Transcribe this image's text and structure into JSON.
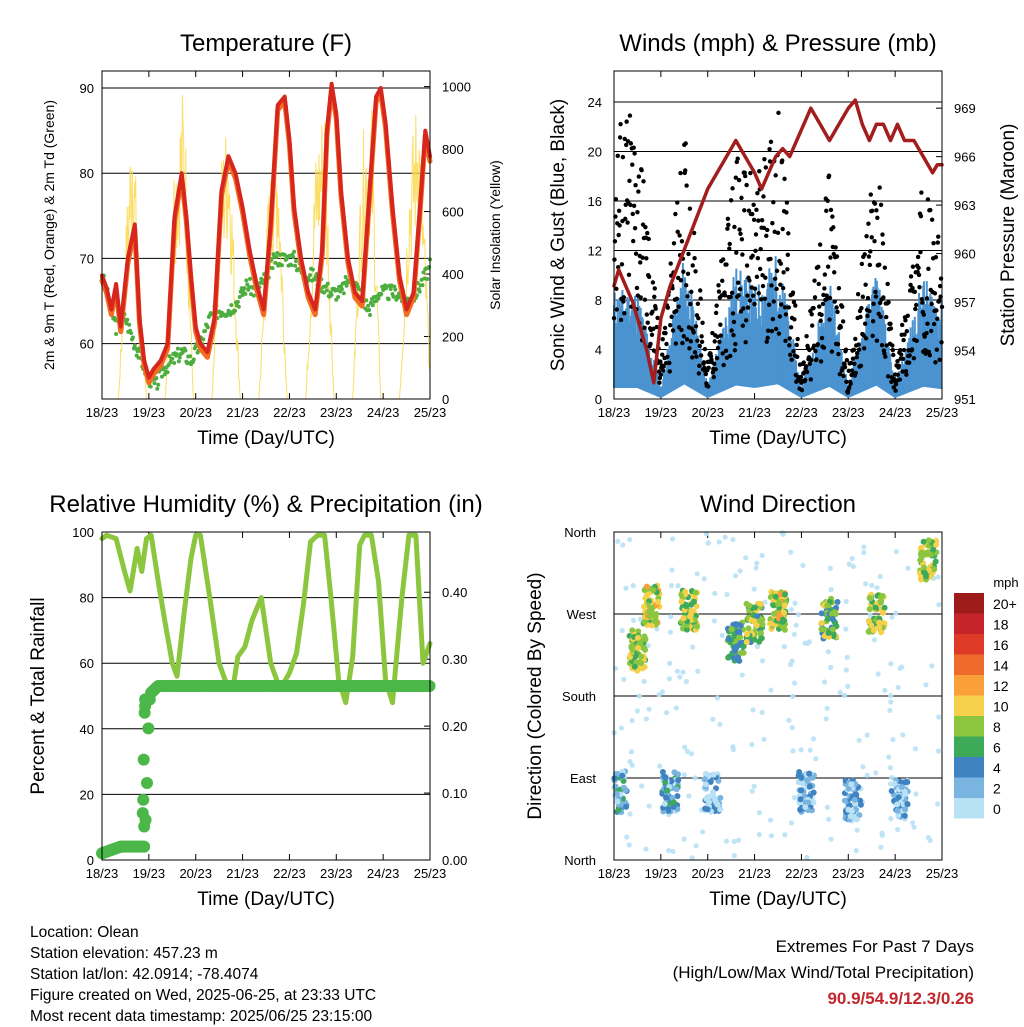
{
  "colors": {
    "temp2m": "#d7261e",
    "temp9m": "#f26d21",
    "dewpoint": "#4dad3e",
    "solar": "#fbd84b",
    "wind": "#4a93d0",
    "gust": "#000000",
    "pressure": "#a41d1d",
    "rh": "#8cc63f",
    "precip": "#4bb748",
    "extremes": "#c1272d"
  },
  "footer": {
    "location": "Location: Olean",
    "elevation": "Station elevation: 457.23 m",
    "latlon": "Station lat/lon: 42.0914; -78.4074",
    "created": "Figure created on Wed, 2025-06-25, at 23:33 UTC",
    "recent": "Most recent data timestamp: 2025/06/25 23:15:00",
    "extremes_title": "Extremes For Past 7 Days",
    "extremes_sub": "(High/Low/Max Wind/Total Precipitation)",
    "extremes_values": "90.9/54.9/12.3/0.26"
  },
  "chart_data": [
    {
      "id": "temperature",
      "type": "line",
      "title": "Temperature (F)",
      "xlabel": "Time (Day/UTC)",
      "ylabel": "2m & 9m T (Red, Orange) & 2m Td (Green)",
      "y2label": "Solar Insolation (Yellow)",
      "xticks": [
        "18/23",
        "19/23",
        "20/23",
        "21/23",
        "22/23",
        "23/23",
        "24/23",
        "25/23"
      ],
      "xlim": [
        0,
        7
      ],
      "ylim": [
        53.5,
        92
      ],
      "yticks": [
        60,
        70,
        80,
        90
      ],
      "y2lim": [
        0,
        1050
      ],
      "y2ticks": [
        0,
        200,
        400,
        600,
        800,
        1000
      ],
      "series": [
        {
          "name": "2m T",
          "color_key": "temp2m",
          "x": [
            0,
            0.1,
            0.2,
            0.3,
            0.4,
            0.55,
            0.7,
            0.8,
            0.9,
            1.0,
            1.1,
            1.25,
            1.4,
            1.55,
            1.7,
            1.8,
            1.9,
            2.0,
            2.1,
            2.25,
            2.4,
            2.55,
            2.7,
            2.85,
            3.0,
            3.15,
            3.3,
            3.45,
            3.6,
            3.75,
            3.9,
            4.0,
            4.1,
            4.25,
            4.4,
            4.55,
            4.7,
            4.8,
            4.9,
            5.0,
            5.1,
            5.25,
            5.4,
            5.55,
            5.7,
            5.85,
            5.95,
            6.05,
            6.2,
            6.35,
            6.5,
            6.65,
            6.8,
            6.9,
            7.0
          ],
          "values": [
            68,
            66.5,
            64,
            67,
            62,
            70,
            74,
            63,
            58,
            56,
            57,
            58,
            60,
            75,
            80,
            75,
            68,
            62,
            60,
            59,
            63,
            78,
            82,
            80,
            76,
            71,
            67,
            64,
            74,
            88,
            89,
            84,
            76,
            70,
            66,
            64,
            71,
            85,
            90.5,
            87,
            78,
            70,
            66,
            65,
            77,
            89,
            90,
            86,
            76,
            68,
            64,
            66,
            77,
            85,
            82
          ]
        },
        {
          "name": "Td",
          "color_key": "dewpoint",
          "x": [
            0,
            0.15,
            0.3,
            0.5,
            0.7,
            0.85,
            1.0,
            1.15,
            1.3,
            1.5,
            1.7,
            1.9,
            2.1,
            2.3,
            2.5,
            2.7,
            2.9,
            3.1,
            3.3,
            3.5,
            3.7,
            3.9,
            4.1,
            4.3,
            4.5,
            4.7,
            4.9,
            5.1,
            5.3,
            5.5,
            5.7,
            5.9,
            6.1,
            6.3,
            6.5,
            6.7,
            6.9,
            7.0
          ],
          "values": [
            68,
            65,
            62,
            63,
            60,
            58,
            56,
            55,
            57,
            58,
            59,
            58,
            60,
            63,
            64,
            64,
            65,
            67,
            66,
            68,
            70,
            70,
            70,
            68,
            68,
            67,
            66,
            66,
            68,
            66,
            64,
            66,
            66,
            66,
            65,
            66,
            68,
            69
          ]
        },
        {
          "name": "Solar",
          "color_key": "solar",
          "axis": "y2",
          "x": [
            0,
            0.35,
            0.5,
            0.65,
            0.8,
            0.95,
            1.35,
            1.5,
            1.75,
            1.95,
            2.35,
            2.5,
            2.7,
            2.95,
            3.35,
            3.55,
            3.75,
            3.95,
            4.35,
            4.55,
            4.75,
            4.95,
            5.35,
            5.55,
            5.75,
            5.95,
            6.35,
            6.55,
            6.75,
            6.95,
            7.0
          ],
          "values": [
            0,
            0,
            500,
            950,
            400,
            0,
            0,
            700,
            1000,
            0,
            0,
            700,
            900,
            0,
            0,
            650,
            850,
            0,
            0,
            750,
            950,
            0,
            0,
            800,
            950,
            0,
            0,
            700,
            980,
            300,
            100
          ]
        }
      ]
    },
    {
      "id": "winds",
      "type": "scatter",
      "title": "Winds (mph) & Pressure (mb)",
      "xlabel": "Time (Day/UTC)",
      "ylabel": "Sonic Wind & Gust (Blue, Black)",
      "y2label": "Station Pressure (Maroon)",
      "xticks": [
        "18/23",
        "19/23",
        "20/23",
        "21/23",
        "22/23",
        "23/23",
        "24/23",
        "25/23"
      ],
      "xlim": [
        0,
        7
      ],
      "ylim": [
        0,
        26.5
      ],
      "yticks": [
        0,
        4,
        8,
        12,
        16,
        20,
        24
      ],
      "y2lim": [
        951,
        971.3
      ],
      "y2ticks": [
        951,
        954,
        957,
        960,
        963,
        966,
        969
      ],
      "series": [
        {
          "name": "Pressure",
          "color_key": "pressure",
          "axis": "y2",
          "type": "line",
          "x": [
            0,
            0.1,
            0.25,
            0.4,
            0.55,
            0.7,
            0.85,
            1.0,
            1.2,
            1.4,
            1.6,
            1.8,
            2.0,
            2.2,
            2.4,
            2.6,
            2.8,
            3.0,
            3.15,
            3.3,
            3.45,
            3.6,
            3.75,
            3.9,
            4.05,
            4.2,
            4.4,
            4.6,
            4.8,
            5.0,
            5.15,
            5.3,
            5.45,
            5.6,
            5.75,
            5.9,
            6.05,
            6.2,
            6.4,
            6.6,
            6.8,
            6.9,
            7.0
          ],
          "values": [
            958,
            959,
            958,
            957,
            955.5,
            954,
            952,
            956,
            958,
            959.5,
            961,
            962.5,
            964,
            965,
            966,
            967,
            966,
            965,
            964,
            965,
            966,
            966.5,
            966,
            967,
            968,
            969,
            968,
            967,
            968,
            969,
            969.5,
            968,
            967,
            968,
            968,
            967,
            968,
            967,
            967,
            966,
            965,
            965.5,
            965.5
          ]
        },
        {
          "name": "Gust envelope",
          "color_key": "gust",
          "x": [
            0.5,
            1.0,
            1.5,
            2.0,
            2.6,
            3.0,
            3.5,
            4.0,
            4.6,
            5.0,
            5.6,
            6.0,
            6.6,
            7.0
          ],
          "values": [
            23.5,
            4,
            22,
            3,
            20,
            18,
            24.5,
            2,
            19,
            2,
            21,
            2,
            18,
            12
          ]
        },
        {
          "name": "Wind envelope",
          "color_key": "wind",
          "x": [
            0.5,
            1.0,
            1.5,
            2.0,
            2.6,
            3.0,
            3.5,
            4.0,
            4.6,
            5.0,
            5.6,
            6.0,
            6.6,
            7.0
          ],
          "values": [
            9,
            1,
            12,
            1,
            11,
            9,
            12,
            1,
            10,
            1,
            11,
            1,
            10,
            8
          ]
        }
      ]
    },
    {
      "id": "humidity",
      "type": "line",
      "title": "Relative Humidity (%) & Precipitation (in)",
      "xlabel": "Time (Day/UTC)",
      "ylabel": "Percent & Total Rainfall",
      "xticks": [
        "18/23",
        "19/23",
        "20/23",
        "21/23",
        "22/23",
        "23/23",
        "24/23",
        "25/23"
      ],
      "xlim": [
        0,
        7
      ],
      "ylim": [
        0,
        100
      ],
      "yticks": [
        0,
        20,
        40,
        60,
        80,
        100
      ],
      "y2lim": [
        0,
        0.49
      ],
      "y2ticks": [
        "0.00",
        "0.10",
        "0.20",
        "0.30",
        "0.40"
      ],
      "series": [
        {
          "name": "RH",
          "color_key": "rh",
          "x": [
            0,
            0.1,
            0.3,
            0.5,
            0.6,
            0.75,
            0.85,
            0.95,
            1.05,
            1.2,
            1.35,
            1.5,
            1.6,
            1.75,
            1.9,
            2.0,
            2.1,
            2.3,
            2.5,
            2.7,
            2.8,
            2.9,
            3.05,
            3.2,
            3.4,
            3.6,
            3.8,
            4.0,
            4.15,
            4.3,
            4.45,
            4.6,
            4.75,
            4.9,
            5.05,
            5.2,
            5.35,
            5.5,
            5.6,
            5.75,
            5.9,
            6.05,
            6.2,
            6.4,
            6.55,
            6.7,
            6.85,
            7.0
          ],
          "values": [
            98,
            99,
            98,
            87,
            82,
            95,
            88,
            98,
            99,
            85,
            72,
            60,
            56,
            75,
            92,
            99,
            99,
            80,
            60,
            52,
            53,
            62,
            65,
            73,
            80,
            60,
            52,
            57,
            63,
            78,
            97,
            99,
            99,
            78,
            55,
            48,
            62,
            96,
            99,
            99,
            85,
            55,
            48,
            80,
            99,
            99,
            60,
            66
          ]
        },
        {
          "name": "Precip",
          "color_key": "precip",
          "axis": "y2",
          "markers": true,
          "x": [
            0,
            0.2,
            0.4,
            0.6,
            0.8,
            0.9,
            0.92,
            0.95,
            0.97,
            1.0,
            1.02,
            1.05,
            1.2,
            1.5,
            2.0,
            2.5,
            3.0,
            3.5,
            4.0,
            4.5,
            5.0,
            5.5,
            6.0,
            6.5,
            7.0
          ],
          "values": [
            0.01,
            0.015,
            0.02,
            0.02,
            0.02,
            0.02,
            0.05,
            0.08,
            0.15,
            0.22,
            0.24,
            0.25,
            0.26,
            0.26,
            0.26,
            0.26,
            0.26,
            0.26,
            0.26,
            0.26,
            0.26,
            0.26,
            0.26,
            0.26,
            0.26
          ]
        }
      ]
    },
    {
      "id": "direction",
      "type": "scatter",
      "title": "Wind Direction",
      "xlabel": "Time (Day/UTC)",
      "ylabel": "Direction (Colored By Speed)",
      "xticks": [
        "18/23",
        "19/23",
        "20/23",
        "21/23",
        "22/23",
        "23/23",
        "24/23",
        "25/23"
      ],
      "xlim": [
        0,
        7
      ],
      "ylim": [
        0,
        360
      ],
      "yticks": [
        "North",
        "East",
        "South",
        "West",
        "North"
      ],
      "colorbar": {
        "title": "mph",
        "labels": [
          "20+",
          "18",
          "16",
          "14",
          "12",
          "10",
          "8",
          "6",
          "4",
          "2",
          "0"
        ],
        "colors": [
          "#9e1b1b",
          "#c4242a",
          "#dd3b28",
          "#ef6a2d",
          "#f9a03b",
          "#f6d04b",
          "#8cc63f",
          "#3daa5a",
          "#3f83c2",
          "#79b5e0",
          "#b8e1f5"
        ]
      },
      "clusters": [
        {
          "x": 0.1,
          "dir": 75,
          "speed": 3
        },
        {
          "x": 0.5,
          "dir": 230,
          "speed": 8
        },
        {
          "x": 0.8,
          "dir": 280,
          "speed": 9
        },
        {
          "x": 1.2,
          "dir": 75,
          "speed": 3
        },
        {
          "x": 1.6,
          "dir": 275,
          "speed": 8
        },
        {
          "x": 2.1,
          "dir": 75,
          "speed": 2
        },
        {
          "x": 2.6,
          "dir": 240,
          "speed": 6
        },
        {
          "x": 3.0,
          "dir": 260,
          "speed": 7
        },
        {
          "x": 3.5,
          "dir": 275,
          "speed": 9
        },
        {
          "x": 4.1,
          "dir": 75,
          "speed": 2
        },
        {
          "x": 4.6,
          "dir": 265,
          "speed": 7
        },
        {
          "x": 5.1,
          "dir": 65,
          "speed": 2
        },
        {
          "x": 5.6,
          "dir": 270,
          "speed": 8
        },
        {
          "x": 6.1,
          "dir": 65,
          "speed": 2
        },
        {
          "x": 6.7,
          "dir": 330,
          "speed": 8
        }
      ]
    }
  ]
}
